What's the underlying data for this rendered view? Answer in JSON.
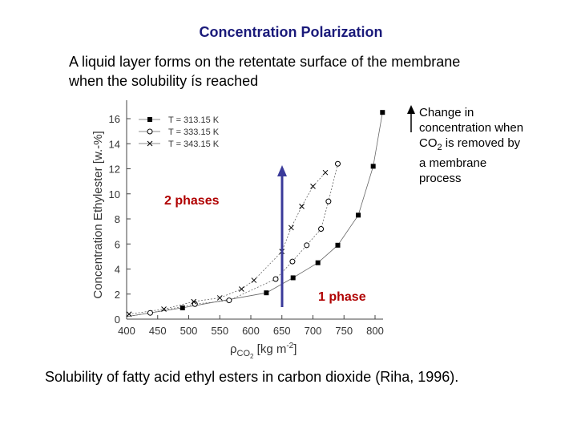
{
  "title": "Concentration Polarization",
  "subtitle": {
    "line1": "A liquid layer forms on the retentate surface of the membrane",
    "line2": "when the solubility ís reached"
  },
  "note": {
    "line1": "Change in",
    "line2": "concentration when",
    "line3_prefix": "CO",
    "line3_sub": "2",
    "line3_suffix": " is removed by",
    "line4": "a membrane",
    "line5": "process"
  },
  "caption": "Solubility of fatty acid ethyl esters in carbon dioxide (Riha, 1996).",
  "colors": {
    "title": "#1a1a7a",
    "annotation": "#b00000",
    "arrow": "#3a3a9a"
  },
  "annotations": {
    "two_phases": "2 phases",
    "one_phase": "1 phase"
  },
  "chart_data": {
    "type": "scatter",
    "ylabel": "Concentration Ethylester [w.-%]",
    "xlabel_rho": "ρ",
    "xlabel_sub": "CO",
    "xlabel_sub2": "2",
    "xlabel_unit": " [kg m",
    "xlabel_exp": "-2",
    "xlabel_close": "]",
    "xlim": [
      400,
      820
    ],
    "ylim": [
      0,
      17
    ],
    "x_ticks": [
      400,
      450,
      500,
      550,
      600,
      650,
      700,
      750,
      800
    ],
    "y_ticks": [
      0,
      2,
      4,
      6,
      8,
      10,
      12,
      14,
      16
    ],
    "legend_position": "top-left",
    "series": [
      {
        "name": "T = 313.15 K",
        "marker": "square",
        "points": [
          [
            490,
            0.9
          ],
          [
            625,
            2.1
          ],
          [
            668,
            3.3
          ],
          [
            708,
            4.5
          ],
          [
            740,
            5.9
          ],
          [
            773,
            8.3
          ],
          [
            797,
            12.2
          ],
          [
            812,
            16.5
          ]
        ]
      },
      {
        "name": "T = 333.15 K",
        "marker": "circle",
        "points": [
          [
            438,
            0.5
          ],
          [
            510,
            1.2
          ],
          [
            565,
            1.5
          ],
          [
            640,
            3.2
          ],
          [
            667,
            4.6
          ],
          [
            690,
            5.9
          ],
          [
            713,
            7.2
          ],
          [
            725,
            9.4
          ],
          [
            740,
            12.4
          ]
        ]
      },
      {
        "name": "T = 343.15 K",
        "marker": "x",
        "points": [
          [
            404,
            0.4
          ],
          [
            460,
            0.8
          ],
          [
            508,
            1.4
          ],
          [
            550,
            1.7
          ],
          [
            585,
            2.4
          ],
          [
            605,
            3.1
          ],
          [
            650,
            5.4
          ],
          [
            665,
            7.3
          ],
          [
            682,
            9.0
          ],
          [
            700,
            10.6
          ],
          [
            720,
            11.7
          ]
        ]
      }
    ]
  }
}
